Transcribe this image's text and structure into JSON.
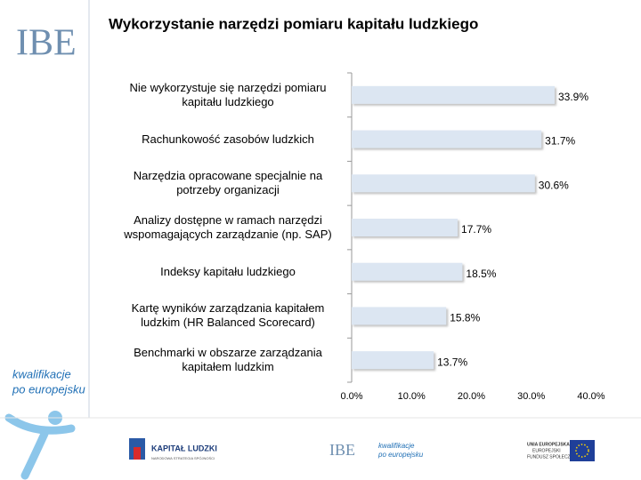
{
  "chart_data": {
    "type": "bar",
    "orientation": "horizontal",
    "title": "Wykorzystanie narzędzi pomiaru kapitału ludzkiego",
    "categories": [
      "Nie wykorzystuje się narzędzi pomiaru kapitału ludzkiego",
      "Rachunkowość zasobów ludzkich",
      "Narzędzia opracowane specjalnie na potrzeby organizacji",
      "Analizy dostępne w ramach narzędzi wspomagających zarządzanie (np. SAP)",
      "Indeksy kapitału ludzkiego",
      "Kartę wyników zarządzania kapitałem ludzkim (HR Balanced Scorecard)",
      "Benchmarki w obszarze zarządzania kapitałem ludzkim"
    ],
    "values": [
      33.9,
      31.7,
      30.6,
      17.7,
      18.5,
      15.8,
      13.7
    ],
    "value_labels": [
      "33.9%",
      "31.7%",
      "30.6%",
      "17.7%",
      "18.5%",
      "15.8%",
      "13.7%"
    ],
    "color": "#dce6f2",
    "xlim": [
      0,
      40
    ],
    "xticks": [
      {
        "value": 0,
        "label": "0.0%"
      },
      {
        "value": 10,
        "label": "10.0%"
      },
      {
        "value": 20,
        "label": "20.0%"
      },
      {
        "value": 30,
        "label": "30.0%"
      },
      {
        "value": 40,
        "label": "40.0%"
      }
    ],
    "grid": false
  },
  "branding": {
    "logo": "IBE",
    "slogan_1": "kwalifikacje",
    "slogan_2": "po europejsku",
    "footer_program": "KAPITAŁ LUDZKI",
    "footer_program_sub": "NARODOWA STRATEGIA SPÓJNOŚCI",
    "footer_logo": "IBE",
    "footer_slogan_1": "kwalifikacje",
    "footer_slogan_2": "po europejsku",
    "footer_eu_1": "UNIA EUROPEJSKA",
    "footer_eu_2": "EUROPEJSKI",
    "footer_eu_3": "FUNDUSZ SPOŁECZNY"
  }
}
